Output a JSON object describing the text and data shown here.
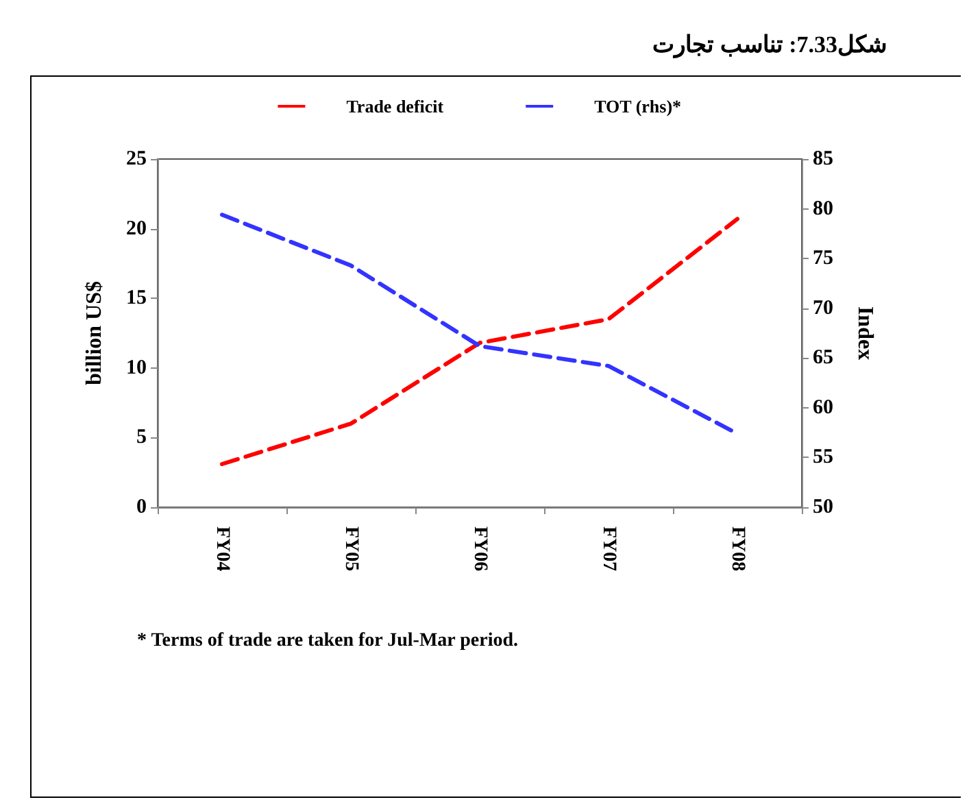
{
  "chart_data": {
    "type": "line",
    "title": "شکل7.33: تناسب تجارت",
    "ylabel": "billion US$",
    "y2label": "Index",
    "categories": [
      "FY04",
      "FY05",
      "FY06",
      "FY07",
      "FY08"
    ],
    "series": [
      {
        "name": "Trade deficit",
        "color": "#ff0000",
        "values": [
          3.1,
          6.0,
          11.8,
          13.5,
          20.7
        ]
      },
      {
        "name": "TOT (rhs)*",
        "color": "#3333ff",
        "axis": "y2",
        "values": [
          79.4,
          74.3,
          66.2,
          64.2,
          57.4
        ]
      }
    ],
    "ylim": [
      0,
      25
    ],
    "yticks": [
      0,
      5,
      10,
      15,
      20,
      25
    ],
    "y2lim": [
      50,
      85
    ],
    "y2ticks": [
      50,
      55,
      60,
      65,
      70,
      75,
      80,
      85
    ],
    "grid": false,
    "legend": "top",
    "marker": "none",
    "line_style": "dashed",
    "annotations": [
      "* Terms of trade are taken for Jul-Mar period."
    ]
  }
}
